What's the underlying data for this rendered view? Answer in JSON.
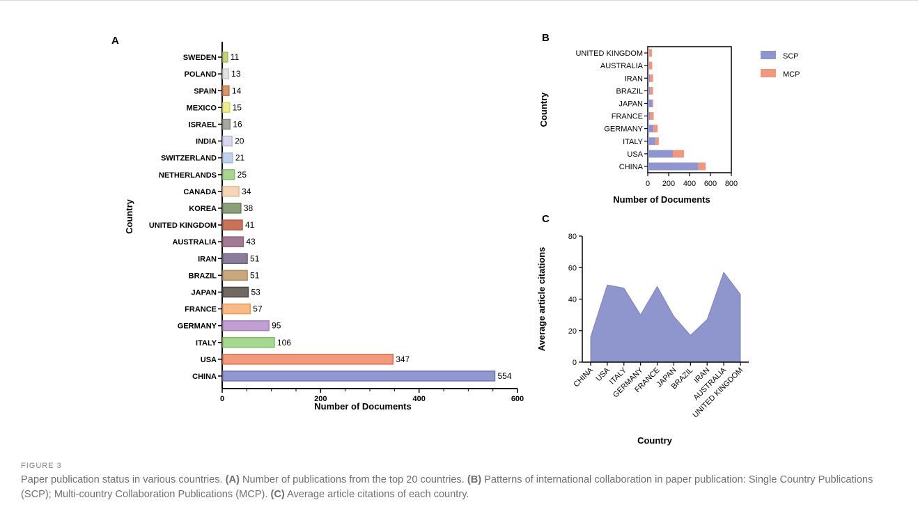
{
  "chart_data": [
    {
      "panel": "A",
      "type": "bar",
      "orientation": "horizontal",
      "ylabel": "Country",
      "xlabel": "Number of Documents",
      "xlim": [
        0,
        600
      ],
      "xticks": [
        "0",
        "200",
        "400",
        "600"
      ],
      "categories": [
        "SWEDEN",
        "POLAND",
        "SPAIN",
        "MEXICO",
        "ISRAEL",
        "INDIA",
        "SWITZERLAND",
        "NETHERLANDS",
        "CANADA",
        "KOREA",
        "UNITED KINGDOM",
        "AUSTRALIA",
        "IRAN",
        "BRAZIL",
        "JAPAN",
        "FRANCE",
        "GERMANY",
        "ITALY",
        "USA",
        "CHINA"
      ],
      "values": [
        11,
        13,
        14,
        15,
        16,
        20,
        21,
        25,
        34,
        38,
        41,
        43,
        51,
        51,
        53,
        57,
        95,
        106,
        347,
        554
      ],
      "value_labels": [
        "11",
        "13",
        "14",
        "15",
        "16",
        "20",
        "21",
        "25",
        "34",
        "38",
        "41",
        "43",
        "51",
        "51",
        "53",
        "57",
        "95",
        "106",
        "347",
        "554"
      ],
      "colors": [
        "#c8d27a",
        "#e3e3e3",
        "#d9956a",
        "#f0ef8a",
        "#a8a8a0",
        "#d8d8ee",
        "#bfd3ee",
        "#a9d58e",
        "#f5d6b8",
        "#8ba07a",
        "#c8725a",
        "#a47a92",
        "#8a7c9a",
        "#c8a87c",
        "#6f6863",
        "#f7bb84",
        "#c09fd2",
        "#a6d891",
        "#f09a7e",
        "#9197cf"
      ],
      "borders": [
        "#a8b55a",
        "#c8c8c8",
        "#c07a4c",
        "#d6d56a",
        "#8a8a80",
        "#b8b8d8",
        "#9fb8dc",
        "#88bb6a",
        "#e8b890",
        "#6a8058",
        "#b05a42",
        "#8a5e78",
        "#6a5c7c",
        "#a88a5c",
        "#4c4540",
        "#e89a60",
        "#a07cb8",
        "#7cbc64",
        "#e06a4a",
        "#6d73b5"
      ]
    },
    {
      "panel": "B",
      "type": "bar",
      "orientation": "horizontal",
      "stacked": true,
      "ylabel": "Country",
      "xlabel": "Number of Documents",
      "xlim": [
        0,
        800
      ],
      "xticks": [
        "0",
        "200",
        "400",
        "600",
        "800"
      ],
      "categories": [
        "UNITED KINGDOM",
        "AUSTRALIA",
        "IRAN",
        "BRAZIL",
        "JAPAN",
        "FRANCE",
        "GERMANY",
        "ITALY",
        "USA",
        "CHINA"
      ],
      "series": [
        {
          "name": "SCP",
          "color": "#8f95cd",
          "values": [
            8,
            10,
            20,
            22,
            45,
            22,
            55,
            75,
            240,
            485
          ]
        },
        {
          "name": "MCP",
          "color": "#f0987c",
          "values": [
            33,
            33,
            31,
            29,
            8,
            35,
            40,
            31,
            107,
            69
          ]
        }
      ],
      "legend_position": "right"
    },
    {
      "panel": "C",
      "type": "area",
      "ylabel": "Average article citations",
      "xlabel": "Country",
      "ylim": [
        0,
        80
      ],
      "yticks": [
        "0",
        "20",
        "40",
        "60",
        "80"
      ],
      "categories": [
        "CHINA",
        "USA",
        "ITALY",
        "GERMANY",
        "FRANCE",
        "JAPAN",
        "BRAZIL",
        "IRAN",
        "AUSTRALIA",
        "UNITED KINGDOM"
      ],
      "values": [
        16,
        49,
        47,
        30,
        48,
        29,
        17,
        27,
        57,
        43
      ],
      "color": "#8f95cd"
    }
  ],
  "caption": {
    "label": "FIGURE 3",
    "t1": "Paper publication status in various countries. ",
    "b1": "(A)",
    "t2": " Number of publications from the top 20 countries. ",
    "b2": "(B)",
    "t3": " Patterns of international collaboration in paper publication: Single Country Publications (SCP); Multi-country Collaboration Publications (MCP). ",
    "b3": "(C)",
    "t4": " Average article citations of each country."
  }
}
